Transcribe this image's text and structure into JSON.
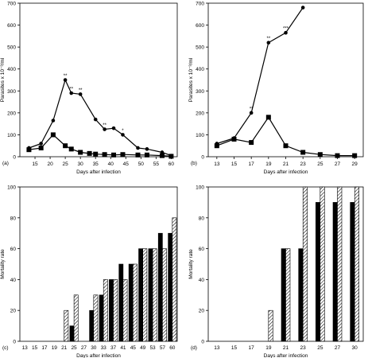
{
  "chart_data": [
    {
      "panel": "(a)",
      "type": "line",
      "xlabel": "Days after infection",
      "ylabel": "Parasites x 10⁻³/ml",
      "xticks": [
        15,
        20,
        25,
        30,
        35,
        40,
        45,
        50,
        55,
        60
      ],
      "xlim": [
        10,
        62
      ],
      "yticks": [
        0,
        100,
        200,
        300,
        400,
        500,
        600,
        700
      ],
      "ylim": [
        0,
        700
      ],
      "series": [
        {
          "marker": "circle",
          "x": [
            13,
            17,
            21,
            25,
            27,
            30,
            35,
            38,
            41,
            44,
            49,
            52,
            57,
            60
          ],
          "y": [
            40,
            60,
            165,
            350,
            290,
            285,
            170,
            125,
            130,
            100,
            40,
            35,
            20,
            5
          ],
          "labels": [
            "",
            "",
            "",
            "**",
            "**",
            "**",
            "",
            "**",
            "",
            "*",
            "",
            "",
            "",
            ""
          ]
        },
        {
          "marker": "square",
          "x": [
            13,
            17,
            21,
            25,
            27,
            30,
            33,
            35,
            38,
            41,
            44,
            49,
            52,
            57,
            60
          ],
          "y": [
            32,
            40,
            100,
            50,
            35,
            20,
            15,
            12,
            10,
            8,
            10,
            8,
            8,
            5,
            2
          ]
        }
      ]
    },
    {
      "panel": "(b)",
      "type": "line",
      "xlabel": "Days after infection",
      "ylabel": "Parasites x 10⁻³/ml",
      "xticks": [
        13,
        15,
        17,
        19,
        21,
        23,
        25,
        27,
        29
      ],
      "xlim": [
        12,
        30
      ],
      "yticks": [
        0,
        100,
        200,
        300,
        400,
        500,
        600,
        700
      ],
      "ylim": [
        0,
        700
      ],
      "series": [
        {
          "marker": "circle",
          "x": [
            13,
            15,
            17,
            19,
            21,
            23
          ],
          "y": [
            60,
            85,
            200,
            520,
            565,
            680
          ],
          "labels": [
            "",
            "",
            "**",
            "**",
            "***",
            ""
          ]
        },
        {
          "marker": "square",
          "x": [
            13,
            15,
            17,
            19,
            21,
            23,
            25,
            27,
            29
          ],
          "y": [
            50,
            80,
            65,
            180,
            50,
            20,
            10,
            5,
            5
          ]
        }
      ]
    },
    {
      "panel": "(c)",
      "type": "bar",
      "xlabel": "Days after infection",
      "ylabel": "Mortality rate",
      "categories": [
        "13",
        "15",
        "17",
        "19",
        "21",
        "25",
        "27",
        "30",
        "33",
        "37",
        "41",
        "45",
        "49",
        "53",
        "57",
        "60"
      ],
      "yticks": [
        0,
        20,
        40,
        60,
        80,
        100
      ],
      "ylim": [
        0,
        100
      ],
      "series": [
        {
          "fill": "solid",
          "values": [
            0,
            0,
            0,
            0,
            0,
            10,
            0,
            20,
            30,
            40,
            50,
            50,
            60,
            60,
            70,
            70
          ]
        },
        {
          "fill": "hatched",
          "values": [
            0,
            0,
            0,
            0,
            20,
            30,
            0,
            30,
            40,
            40,
            40,
            50,
            60,
            60,
            60,
            80
          ]
        }
      ]
    },
    {
      "panel": "(d)",
      "type": "bar",
      "xlabel": "Days after infection",
      "ylabel": "Mortality rate",
      "categories": [
        "13",
        "15",
        "17",
        "19",
        "21",
        "23",
        "25",
        "27",
        "30"
      ],
      "yticks": [
        0,
        20,
        40,
        60,
        80,
        100
      ],
      "ylim": [
        0,
        100
      ],
      "series": [
        {
          "fill": "solid",
          "values": [
            0,
            0,
            0,
            0,
            60,
            60,
            90,
            90,
            90
          ]
        },
        {
          "fill": "hatched",
          "values": [
            0,
            0,
            0,
            20,
            60,
            100,
            100,
            100,
            100
          ]
        }
      ]
    }
  ]
}
